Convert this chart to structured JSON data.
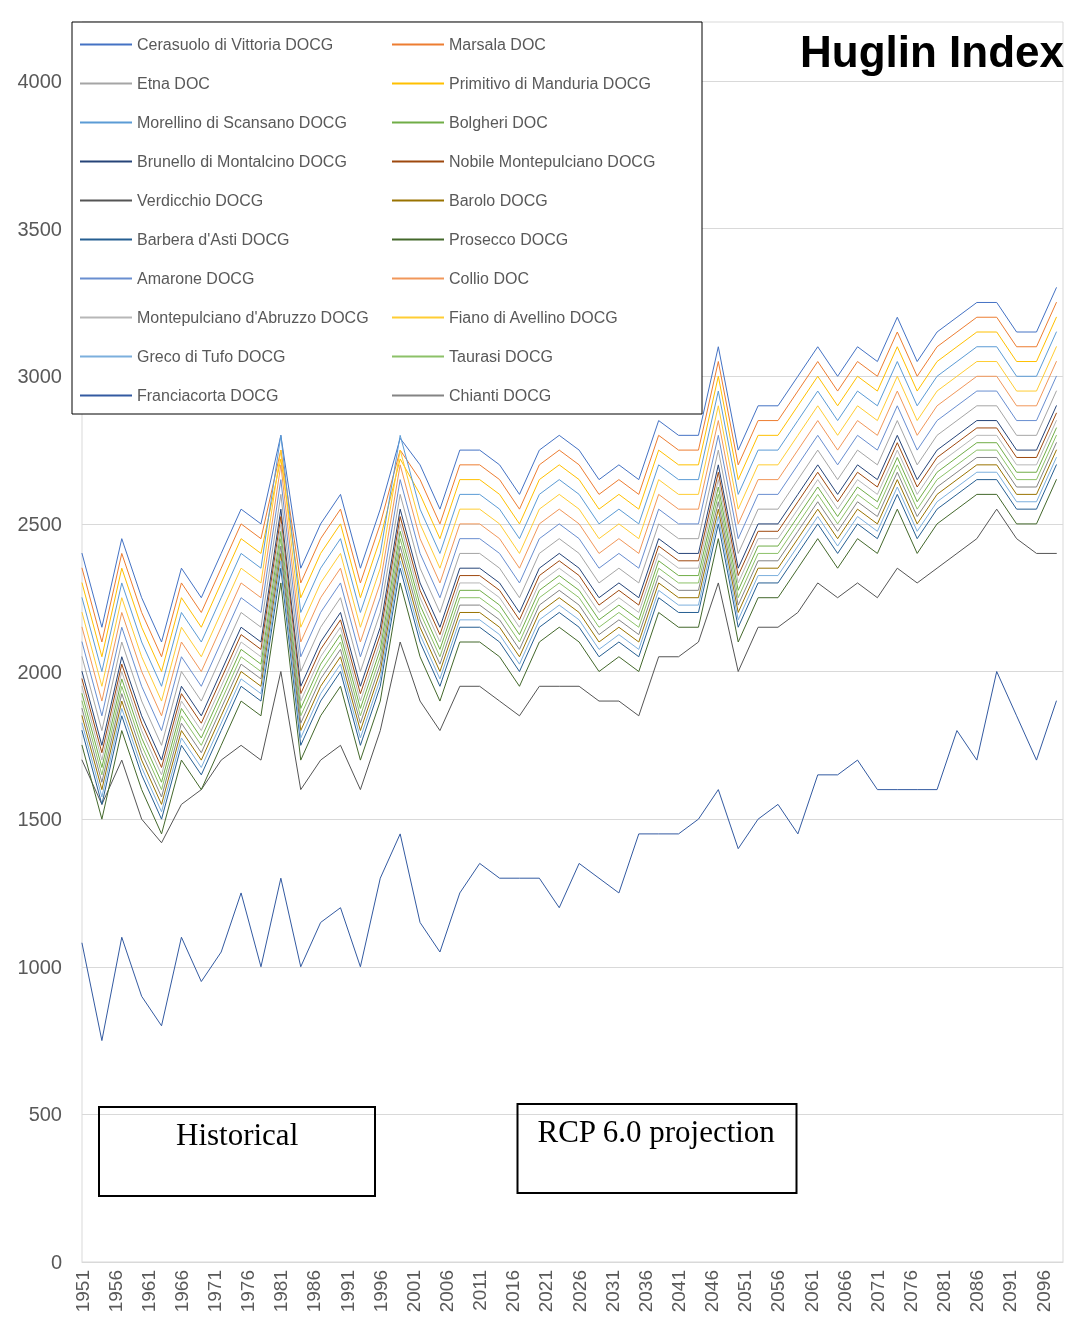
{
  "chart_data": {
    "type": "line",
    "title": "Huglin Index",
    "annotations": [
      "Historical",
      "RCP 6.0 projection"
    ],
    "x": [
      1951,
      1954,
      1957,
      1960,
      1963,
      1966,
      1969,
      1972,
      1975,
      1978,
      1981,
      1984,
      1987,
      1990,
      1993,
      1996,
      1999,
      2002,
      2005,
      2008,
      2011,
      2014,
      2017,
      2020,
      2023,
      2026,
      2029,
      2032,
      2035,
      2038,
      2041,
      2044,
      2047,
      2050,
      2053,
      2056,
      2059,
      2062,
      2065,
      2068,
      2071,
      2074,
      2077,
      2080,
      2083,
      2086,
      2089,
      2092,
      2095,
      2098
    ],
    "xlim": [
      1951,
      2099
    ],
    "xticks": [
      1951,
      1956,
      1961,
      1966,
      1971,
      1976,
      1981,
      1986,
      1991,
      1996,
      2001,
      2006,
      2011,
      2016,
      2021,
      2026,
      2031,
      2036,
      2041,
      2046,
      2051,
      2056,
      2061,
      2066,
      2071,
      2076,
      2081,
      2086,
      2091,
      2096
    ],
    "ylim": [
      0,
      4200
    ],
    "yticks": [
      0,
      500,
      1000,
      1500,
      2000,
      2500,
      3000,
      3500,
      4000
    ],
    "grid": "y",
    "legend": "top left",
    "series": [
      {
        "name": "Cerasuolo di Vittoria DOCG",
        "color": "#4472c4",
        "values": [
          2400,
          2150,
          2450,
          2250,
          2100,
          2350,
          2250,
          2400,
          2550,
          2500,
          2800,
          2350,
          2500,
          2600,
          2350,
          2550,
          2790,
          2700,
          2550,
          2750,
          2750,
          2700,
          2600,
          2750,
          2800,
          2750,
          2650,
          2700,
          2650,
          2850,
          2800,
          2800,
          3100,
          2750,
          2900,
          2900,
          3000,
          3100,
          3000,
          3100,
          3050,
          3200,
          3050,
          3150,
          3200,
          3250,
          3250,
          3150,
          3150,
          3300
        ]
      },
      {
        "name": "Marsala DOC",
        "color": "#ed7d31",
        "values": [
          2350,
          2100,
          2400,
          2200,
          2050,
          2300,
          2200,
          2350,
          2500,
          2450,
          2750,
          2300,
          2450,
          2550,
          2300,
          2500,
          2750,
          2650,
          2500,
          2700,
          2700,
          2650,
          2550,
          2700,
          2750,
          2700,
          2600,
          2650,
          2600,
          2800,
          2750,
          2750,
          3050,
          2700,
          2850,
          2850,
          2950,
          3050,
          2950,
          3050,
          3000,
          3150,
          3000,
          3100,
          3150,
          3200,
          3200,
          3100,
          3100,
          3250
        ]
      },
      {
        "name": "Etna DOC",
        "color": "#a5a5a5",
        "values": [
          2050,
          1800,
          2100,
          1900,
          1750,
          2000,
          1900,
          2050,
          2200,
          2150,
          2600,
          2000,
          2150,
          2250,
          2000,
          2200,
          2600,
          2350,
          2200,
          2400,
          2400,
          2350,
          2250,
          2400,
          2450,
          2400,
          2300,
          2350,
          2300,
          2500,
          2450,
          2450,
          2750,
          2400,
          2550,
          2550,
          2650,
          2750,
          2650,
          2750,
          2700,
          2850,
          2700,
          2800,
          2850,
          2900,
          2900,
          2800,
          2800,
          2950
        ]
      },
      {
        "name": "Primitivo di Manduria DOCG",
        "color": "#ffc000",
        "values": [
          2300,
          2050,
          2350,
          2150,
          2000,
          2250,
          2150,
          2300,
          2450,
          2400,
          2720,
          2250,
          2400,
          2500,
          2250,
          2450,
          2720,
          2600,
          2450,
          2650,
          2650,
          2600,
          2500,
          2650,
          2700,
          2650,
          2550,
          2600,
          2550,
          2750,
          2700,
          2700,
          3000,
          2650,
          2800,
          2800,
          2900,
          3000,
          2900,
          3000,
          2950,
          3100,
          2950,
          3050,
          3100,
          3150,
          3150,
          3050,
          3050,
          3200
        ]
      },
      {
        "name": "Morellino di Scansano DOCG",
        "color": "#5b9bd5",
        "values": [
          2250,
          2000,
          2300,
          2100,
          1950,
          2200,
          2100,
          2250,
          2400,
          2350,
          2800,
          2200,
          2350,
          2450,
          2200,
          2400,
          2800,
          2550,
          2400,
          2600,
          2600,
          2550,
          2450,
          2600,
          2650,
          2600,
          2500,
          2550,
          2500,
          2700,
          2650,
          2650,
          2950,
          2600,
          2750,
          2750,
          2850,
          2950,
          2850,
          2950,
          2900,
          3050,
          2900,
          3000,
          3050,
          3100,
          3100,
          3000,
          3000,
          3150
        ]
      },
      {
        "name": "Bolgheri DOC",
        "color": "#70ad47",
        "values": [
          1925,
          1675,
          1975,
          1775,
          1625,
          1875,
          1775,
          1925,
          2075,
          2025,
          2475,
          1875,
          2025,
          2125,
          1875,
          2075,
          2475,
          2225,
          2075,
          2275,
          2275,
          2225,
          2125,
          2275,
          2325,
          2275,
          2175,
          2225,
          2175,
          2375,
          2325,
          2325,
          2625,
          2275,
          2425,
          2425,
          2525,
          2625,
          2525,
          2625,
          2575,
          2725,
          2575,
          2675,
          2725,
          2775,
          2775,
          2675,
          2675,
          2825
        ]
      },
      {
        "name": "Brunello di Montalcino DOCG",
        "color": "#264478",
        "values": [
          2000,
          1750,
          2050,
          1850,
          1700,
          1950,
          1850,
          2000,
          2150,
          2100,
          2550,
          1950,
          2100,
          2200,
          1950,
          2150,
          2550,
          2300,
          2150,
          2350,
          2350,
          2300,
          2200,
          2350,
          2400,
          2350,
          2250,
          2300,
          2250,
          2450,
          2400,
          2400,
          2700,
          2350,
          2500,
          2500,
          2600,
          2700,
          2600,
          2700,
          2650,
          2800,
          2650,
          2750,
          2800,
          2850,
          2850,
          2750,
          2750,
          2900
        ]
      },
      {
        "name": "Nobile Montepulciano DOCG",
        "color": "#9e480e",
        "values": [
          1975,
          1725,
          2025,
          1825,
          1675,
          1925,
          1825,
          1975,
          2125,
          2075,
          2525,
          1925,
          2075,
          2175,
          1925,
          2125,
          2525,
          2275,
          2125,
          2325,
          2325,
          2275,
          2175,
          2325,
          2375,
          2325,
          2225,
          2275,
          2225,
          2425,
          2375,
          2375,
          2675,
          2325,
          2475,
          2475,
          2575,
          2675,
          2575,
          2675,
          2625,
          2775,
          2625,
          2725,
          2775,
          2825,
          2825,
          2725,
          2725,
          2875
        ]
      },
      {
        "name": "Verdicchio DOCG",
        "color": "#555555",
        "values": [
          1700,
          1550,
          1700,
          1500,
          1420,
          1550,
          1600,
          1700,
          1750,
          1700,
          2000,
          1600,
          1700,
          1750,
          1600,
          1800,
          2100,
          1900,
          1800,
          1950,
          1950,
          1900,
          1850,
          1950,
          1950,
          1950,
          1900,
          1900,
          1850,
          2050,
          2050,
          2100,
          2300,
          2000,
          2150,
          2150,
          2200,
          2300,
          2250,
          2300,
          2250,
          2350,
          2300,
          2350,
          2400,
          2450,
          2550,
          2450,
          2400,
          2400
        ]
      },
      {
        "name": "Barolo DOCG",
        "color": "#997300",
        "values": [
          1850,
          1600,
          1900,
          1700,
          1550,
          1800,
          1700,
          1850,
          2000,
          1950,
          2400,
          1800,
          1950,
          2050,
          1800,
          2000,
          2400,
          2150,
          2000,
          2200,
          2200,
          2150,
          2050,
          2200,
          2250,
          2200,
          2100,
          2150,
          2100,
          2300,
          2250,
          2250,
          2550,
          2200,
          2350,
          2350,
          2450,
          2550,
          2450,
          2550,
          2500,
          2650,
          2500,
          2600,
          2650,
          2700,
          2700,
          2600,
          2600,
          2750
        ]
      },
      {
        "name": "Barbera d'Asti DOCG",
        "color": "#255e91",
        "values": [
          1800,
          1550,
          1850,
          1650,
          1500,
          1750,
          1650,
          1800,
          1950,
          1900,
          2350,
          1750,
          1900,
          2000,
          1750,
          1950,
          2350,
          2100,
          1950,
          2150,
          2150,
          2100,
          2000,
          2150,
          2200,
          2150,
          2050,
          2100,
          2050,
          2250,
          2200,
          2200,
          2500,
          2150,
          2300,
          2300,
          2400,
          2500,
          2400,
          2500,
          2450,
          2600,
          2450,
          2550,
          2600,
          2650,
          2650,
          2550,
          2550,
          2700
        ]
      },
      {
        "name": "Prosecco DOCG",
        "color": "#43682b",
        "values": [
          1750,
          1500,
          1800,
          1600,
          1450,
          1700,
          1600,
          1750,
          1900,
          1850,
          2300,
          1700,
          1850,
          1950,
          1700,
          1900,
          2300,
          2050,
          1900,
          2100,
          2100,
          2050,
          1950,
          2100,
          2150,
          2100,
          2000,
          2050,
          2000,
          2200,
          2150,
          2150,
          2450,
          2100,
          2250,
          2250,
          2350,
          2450,
          2350,
          2450,
          2400,
          2550,
          2400,
          2500,
          2550,
          2600,
          2600,
          2500,
          2500,
          2650
        ]
      },
      {
        "name": "Amarone DOCG",
        "color": "#698ed0",
        "values": [
          2100,
          1850,
          2150,
          1950,
          1800,
          2050,
          1950,
          2100,
          2250,
          2200,
          2650,
          2050,
          2200,
          2300,
          2050,
          2250,
          2650,
          2400,
          2250,
          2450,
          2450,
          2400,
          2300,
          2450,
          2500,
          2450,
          2350,
          2400,
          2350,
          2550,
          2500,
          2500,
          2800,
          2450,
          2600,
          2600,
          2700,
          2800,
          2700,
          2800,
          2750,
          2900,
          2750,
          2850,
          2900,
          2950,
          2950,
          2850,
          2850,
          3000
        ]
      },
      {
        "name": "Collio DOC",
        "color": "#f1975a",
        "values": [
          2150,
          1900,
          2200,
          2000,
          1850,
          2100,
          2000,
          2150,
          2300,
          2250,
          2700,
          2100,
          2250,
          2350,
          2100,
          2300,
          2700,
          2450,
          2300,
          2500,
          2500,
          2450,
          2350,
          2500,
          2550,
          2500,
          2400,
          2450,
          2400,
          2600,
          2550,
          2550,
          2850,
          2500,
          2650,
          2650,
          2750,
          2850,
          2750,
          2850,
          2800,
          2950,
          2800,
          2900,
          2950,
          3000,
          3000,
          2900,
          2900,
          3050
        ]
      },
      {
        "name": "Montepulciano d'Abruzzo DOCG",
        "color": "#b7b7b7",
        "values": [
          1950,
          1700,
          2000,
          1800,
          1650,
          1900,
          1800,
          1950,
          2100,
          2050,
          2500,
          1900,
          2050,
          2150,
          1900,
          2100,
          2500,
          2250,
          2100,
          2300,
          2300,
          2250,
          2150,
          2300,
          2350,
          2300,
          2200,
          2250,
          2200,
          2400,
          2350,
          2350,
          2650,
          2300,
          2450,
          2450,
          2550,
          2650,
          2550,
          2650,
          2600,
          2750,
          2600,
          2700,
          2750,
          2800,
          2800,
          2700,
          2700,
          2850
        ]
      },
      {
        "name": "Fiano di Avellino DOCG",
        "color": "#ffcd33",
        "values": [
          2200,
          1950,
          2250,
          2050,
          1900,
          2150,
          2050,
          2200,
          2350,
          2300,
          2750,
          2150,
          2300,
          2400,
          2150,
          2350,
          2750,
          2500,
          2350,
          2550,
          2550,
          2500,
          2400,
          2550,
          2600,
          2550,
          2450,
          2500,
          2450,
          2650,
          2600,
          2600,
          2900,
          2550,
          2700,
          2700,
          2800,
          2900,
          2800,
          2900,
          2850,
          3000,
          2850,
          2950,
          3000,
          3050,
          3050,
          2950,
          2950,
          3100
        ]
      },
      {
        "name": "Greco di Tufo DOCG",
        "color": "#7cafdd",
        "values": [
          1825,
          1575,
          1875,
          1675,
          1525,
          1775,
          1675,
          1825,
          1975,
          1925,
          2375,
          1775,
          1925,
          2025,
          1775,
          1975,
          2375,
          2125,
          1975,
          2175,
          2175,
          2125,
          2025,
          2175,
          2225,
          2175,
          2075,
          2125,
          2075,
          2275,
          2225,
          2225,
          2525,
          2175,
          2325,
          2325,
          2425,
          2525,
          2425,
          2525,
          2475,
          2625,
          2475,
          2575,
          2625,
          2675,
          2675,
          2575,
          2575,
          2725
        ]
      },
      {
        "name": "Taurasi DOCG",
        "color": "#8cc168",
        "values": [
          1900,
          1650,
          1950,
          1750,
          1600,
          1850,
          1750,
          1900,
          2050,
          2000,
          2450,
          1850,
          2000,
          2100,
          1850,
          2050,
          2450,
          2200,
          2050,
          2250,
          2250,
          2200,
          2100,
          2250,
          2300,
          2250,
          2150,
          2200,
          2150,
          2350,
          2300,
          2300,
          2600,
          2250,
          2400,
          2400,
          2500,
          2600,
          2500,
          2600,
          2550,
          2700,
          2550,
          2650,
          2700,
          2750,
          2750,
          2650,
          2650,
          2800
        ]
      },
      {
        "name": "Franciacorta DOCG",
        "color": "#335aa1",
        "values": [
          1080,
          750,
          1100,
          900,
          800,
          1100,
          950,
          1050,
          1250,
          1000,
          1300,
          1000,
          1150,
          1200,
          1000,
          1300,
          1450,
          1150,
          1050,
          1250,
          1350,
          1300,
          1300,
          1300,
          1200,
          1350,
          1300,
          1250,
          1450,
          1450,
          1450,
          1500,
          1600,
          1400,
          1500,
          1550,
          1450,
          1650,
          1650,
          1700,
          1600,
          1600,
          1600,
          1600,
          1800,
          1700,
          2000,
          1850,
          1700,
          1900
        ]
      },
      {
        "name": "Chianti DOCG",
        "color": "#848484",
        "values": [
          1875,
          1625,
          1925,
          1725,
          1575,
          1825,
          1725,
          1875,
          2025,
          1975,
          2425,
          1825,
          1975,
          2075,
          1825,
          2025,
          2425,
          2175,
          2025,
          2225,
          2225,
          2175,
          2075,
          2225,
          2275,
          2225,
          2125,
          2175,
          2125,
          2325,
          2275,
          2275,
          2575,
          2225,
          2375,
          2375,
          2475,
          2575,
          2475,
          2575,
          2525,
          2675,
          2525,
          2625,
          2675,
          2725,
          2725,
          2625,
          2625,
          2775
        ]
      }
    ]
  }
}
